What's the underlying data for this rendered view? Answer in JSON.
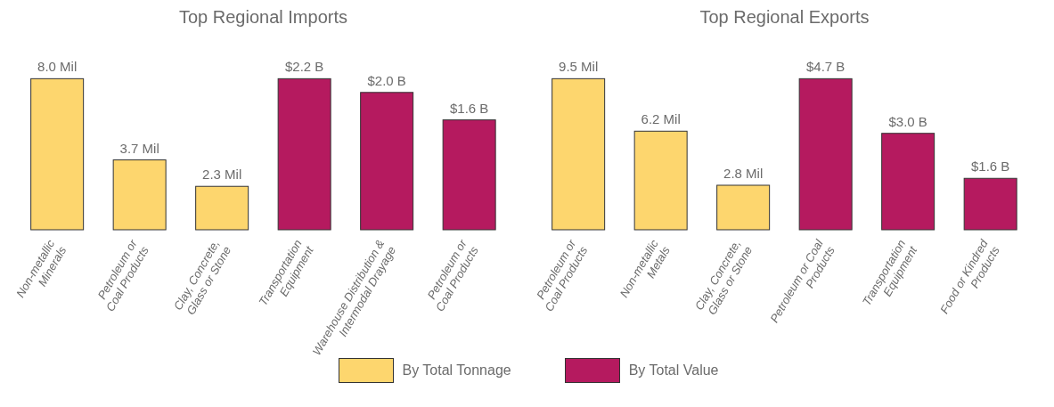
{
  "chart_data": [
    {
      "type": "bar",
      "title": "Top Regional Imports",
      "categories": [
        "Non-metallic\nMinerals",
        "Petroleum or\nCoal Products",
        "Clay, Concrete,\nGlass or Stone",
        "Transportation\nEquipment",
        "Warehouse Distribution &\nIntermodal Drayage",
        "Petroleum or\nCoal Products"
      ],
      "series": [
        {
          "name": "By Total Tonnage",
          "color": "#fdd66e",
          "values": [
            8.0,
            3.7,
            2.3,
            null,
            null,
            null
          ],
          "value_labels": [
            "8.0 Mil",
            "3.7 Mil",
            "2.3 Mil",
            null,
            null,
            null
          ]
        },
        {
          "name": "By Total Value",
          "color": "#b51a5f",
          "axis": "y2",
          "values": [
            null,
            null,
            null,
            2.2,
            2.0,
            1.6
          ],
          "value_labels": [
            null,
            null,
            null,
            "$2.2 B",
            "$2.0 B",
            "$1.6 B"
          ]
        }
      ],
      "legend": "bottom",
      "tick_labels": "x",
      "grid": false
    },
    {
      "type": "bar",
      "title": "Top Regional Exports",
      "categories": [
        "Petroleum or\nCoal Products",
        "Non-metallic\nMetals",
        "Clay, Concrete,\nGlass or Stone",
        "Petroleum or Coal\nProducts",
        "Transportation\nEquipment",
        "Food or Kindred\nProducts"
      ],
      "series": [
        {
          "name": "By Total Tonnage",
          "color": "#fdd66e",
          "values": [
            9.5,
            6.2,
            2.8,
            null,
            null,
            null
          ],
          "value_labels": [
            "9.5 Mil",
            "6.2 Mil",
            "2.8 Mil",
            null,
            null,
            null
          ]
        },
        {
          "name": "By Total Value",
          "color": "#b51a5f",
          "axis": "y2",
          "values": [
            null,
            null,
            null,
            4.7,
            3.0,
            1.6
          ],
          "value_labels": [
            null,
            null,
            null,
            "$4.7 B",
            "$3.0 B",
            "$1.6 B"
          ]
        }
      ],
      "legend": "bottom",
      "tick_labels": "x",
      "grid": false
    }
  ]
}
